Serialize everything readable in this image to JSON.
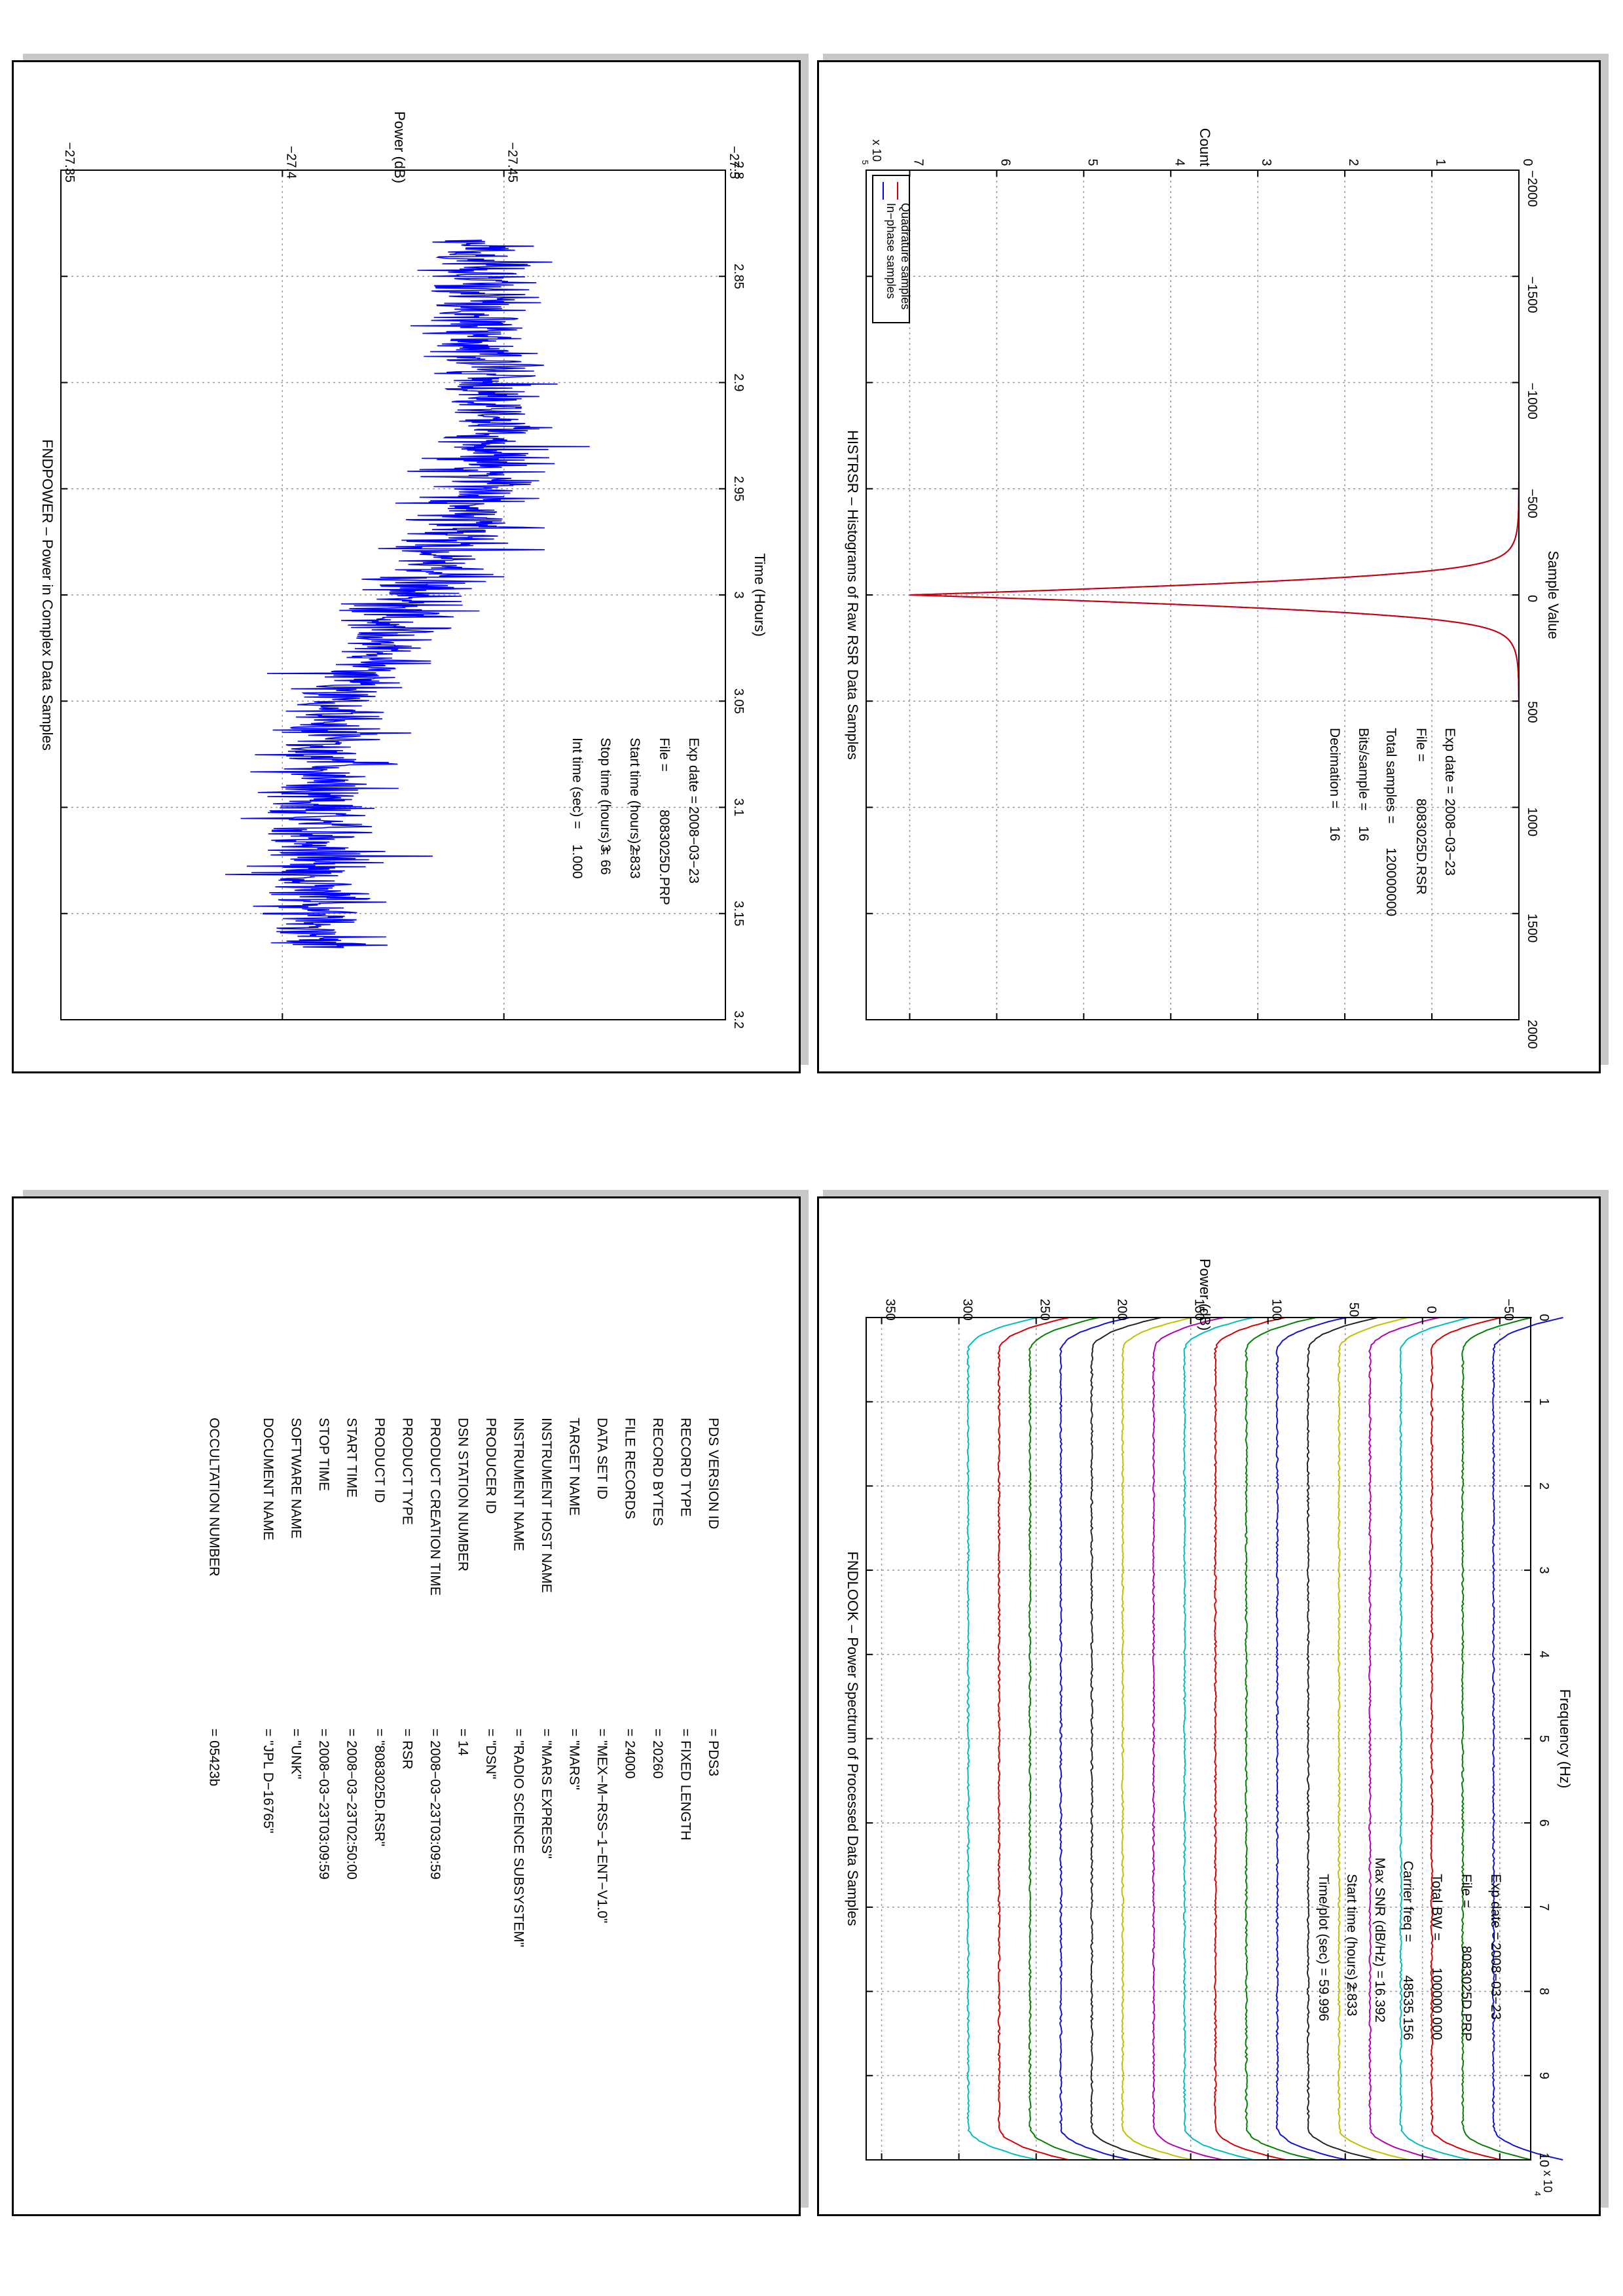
{
  "colors": {
    "blue": "#0000ff",
    "red": "#d40000",
    "green": "#008000",
    "cyan": "#00bcbc",
    "magenta": "#b000b0",
    "olive": "#c0c000",
    "black": "#222222",
    "navy": "#1010d0"
  },
  "panels": {
    "histrsr": {
      "chart_data": {
        "type": "line",
        "title": "HISTRSR – Histograms of Raw RSR Data Samples",
        "xlabel": "Sample Value",
        "ylabel": "Count",
        "xlim": [
          -2000,
          2000
        ],
        "ylim": [
          0,
          750000
        ],
        "xticks": [
          "−2000",
          "−1500",
          "−1000",
          "−500",
          "0",
          "500",
          "1000",
          "1500",
          "2000"
        ],
        "yticks": [
          "0",
          "1",
          "2",
          "3",
          "4",
          "5",
          "6",
          "7"
        ],
        "y_exponent": "x 10",
        "y_exponent_power": "5",
        "grid": true,
        "legend_position": "top-left",
        "series": [
          {
            "name": "In−phase samples",
            "color": "#0000ff",
            "peak": 700000,
            "sigma": 60
          },
          {
            "name": "Quadrature samples",
            "color": "#d40000",
            "peak": 700000,
            "sigma": 60
          }
        ],
        "annotations": [
          {
            "label": "Exp date =",
            "value": "2008−03−23"
          },
          {
            "label": "File =",
            "value": "8083025D.RSR"
          },
          {
            "label": "Total samples =",
            "value": "120000000"
          },
          {
            "label": "Bits/sample    =",
            "value": "16"
          },
          {
            "label": "Decimation    =",
            "value": "16"
          }
        ]
      }
    },
    "fndpower": {
      "chart_data": {
        "type": "line",
        "title": "FNDPOWER – Power in Complex Data Samples",
        "xlabel": "Time (Hours)",
        "ylabel": "Power (dB)",
        "xlim": [
          2.8,
          3.2
        ],
        "ylim": [
          -27.5,
          -27.35
        ],
        "xticks": [
          "2.8",
          "2.85",
          "2.9",
          "2.95",
          "3",
          "3.05",
          "3.1",
          "3.15",
          "3.2"
        ],
        "yticks": [
          "−27.5",
          "−27.45",
          "−27.4",
          "−27.35"
        ],
        "grid": true,
        "series": [
          {
            "name": "",
            "color": "#0000ff",
            "x_start": 2.833,
            "x_end": 3.166,
            "trend": [
              [
                2.833,
                -27.443
              ],
              [
                2.9,
                -27.447
              ],
              [
                2.95,
                -27.446
              ],
              [
                3.0,
                -27.43
              ],
              [
                3.05,
                -27.414
              ],
              [
                3.1,
                -27.406
              ],
              [
                3.166,
                -27.41
              ]
            ],
            "noise_amplitude": 0.012
          }
        ],
        "annotations": [
          {
            "label": "Exp date =",
            "value": "2008−03−23"
          },
          {
            "label": "File =",
            "value": "8083025D.PRP"
          },
          {
            "label": "Start time (hours) =",
            "value": "2.833"
          },
          {
            "label": "Stop time (hours) =",
            "value": "3. 66"
          },
          {
            "label": "Int time (sec) =",
            "value": "1.000"
          }
        ]
      }
    },
    "fndlook": {
      "chart_data": {
        "type": "line",
        "title": "FNDLOOK – Power Spectrum of Processed Data Samples",
        "xlabel": "Frequency (Hz)",
        "ylabel": "Power (dB)",
        "xlim": [
          0,
          100000
        ],
        "ylim": [
          -70,
          360
        ],
        "xticks": [
          "0",
          "1",
          "2",
          "3",
          "4",
          "5",
          "6",
          "7",
          "8",
          "9",
          "10"
        ],
        "yticks": [
          "−50",
          "0",
          "50",
          "100",
          "150",
          "200",
          "250",
          "300",
          "350"
        ],
        "x_exponent": "x 10",
        "x_exponent_power": "4",
        "grid": true,
        "series_levels": [
          -46,
          -26,
          -6,
          14,
          34,
          54,
          74,
          94,
          114,
          134,
          154,
          174,
          194,
          214,
          234,
          254,
          274,
          294
        ],
        "series_colors": [
          "#1010d0",
          "#008000",
          "#d40000",
          "#00bcbc",
          "#b000b0",
          "#c0c000",
          "#222222",
          "#1010d0",
          "#008000",
          "#d40000",
          "#00bcbc",
          "#b000b0",
          "#c0c000",
          "#222222",
          "#1010d0",
          "#008000",
          "#d40000",
          "#00bcbc"
        ],
        "annotations": [
          {
            "label": "Exp date =",
            "value": "2008−03−23"
          },
          {
            "label": "File =",
            "value": "8083025D.PRP"
          },
          {
            "label": "Total BW =",
            "value": "100000.000"
          },
          {
            "label": "Carrier freq =",
            "value": "48535.156"
          },
          {
            "label": "Max SNR (dB/Hz) =",
            "value": "16.392"
          },
          {
            "label": "Start time (hours) =",
            "value": "2.833"
          },
          {
            "label": "Time/plot (sec) =",
            "value": "59.996"
          }
        ]
      }
    },
    "label": {
      "rows": [
        {
          "key": "PDS VERSION ID",
          "value": "=  PDS3"
        },
        {
          "key": "RECORD TYPE",
          "value": "=  FIXED LENGTH"
        },
        {
          "key": "RECORD BYTES",
          "value": "=  20260"
        },
        {
          "key": "FILE RECORDS",
          "value": "=  24000"
        },
        {
          "key": "DATA SET ID",
          "value": "=  \"MEX−M−RSS−1−ENT−V1.0\""
        },
        {
          "key": "TARGET NAME",
          "value": "=  \"MARS\""
        },
        {
          "key": "INSTRUMENT HOST NAME",
          "value": "=  \"MARS EXPRESS\""
        },
        {
          "key": "INSTRUMENT NAME",
          "value": "=  \"RADIO SCIENCE SUBSYSTEM\""
        },
        {
          "key": "PRODUCER ID",
          "value": "=  \"DSN\""
        },
        {
          "key": "DSN STATION NUMBER",
          "value": "=  14"
        },
        {
          "key": "PRODUCT CREATION TIME",
          "value": "=  2008−03−23T03:09:59"
        },
        {
          "key": "PRODUCT TYPE",
          "value": "=  RSR"
        },
        {
          "key": "PRODUCT ID",
          "value": "=  \"8083025D.RSR\""
        },
        {
          "key": "START TIME",
          "value": "=  2008−03−23T02:50:00"
        },
        {
          "key": "STOP TIME",
          "value": "=  2008−03−23T03:09:59"
        },
        {
          "key": "SOFTWARE NAME",
          "value": "=  \"UNK\""
        },
        {
          "key": "DOCUMENT NAME",
          "value": "=  \"JPL D−16765\""
        }
      ],
      "occultation": {
        "key": "OCCULTATION NUMBER",
        "value": "=  05423b"
      }
    }
  }
}
